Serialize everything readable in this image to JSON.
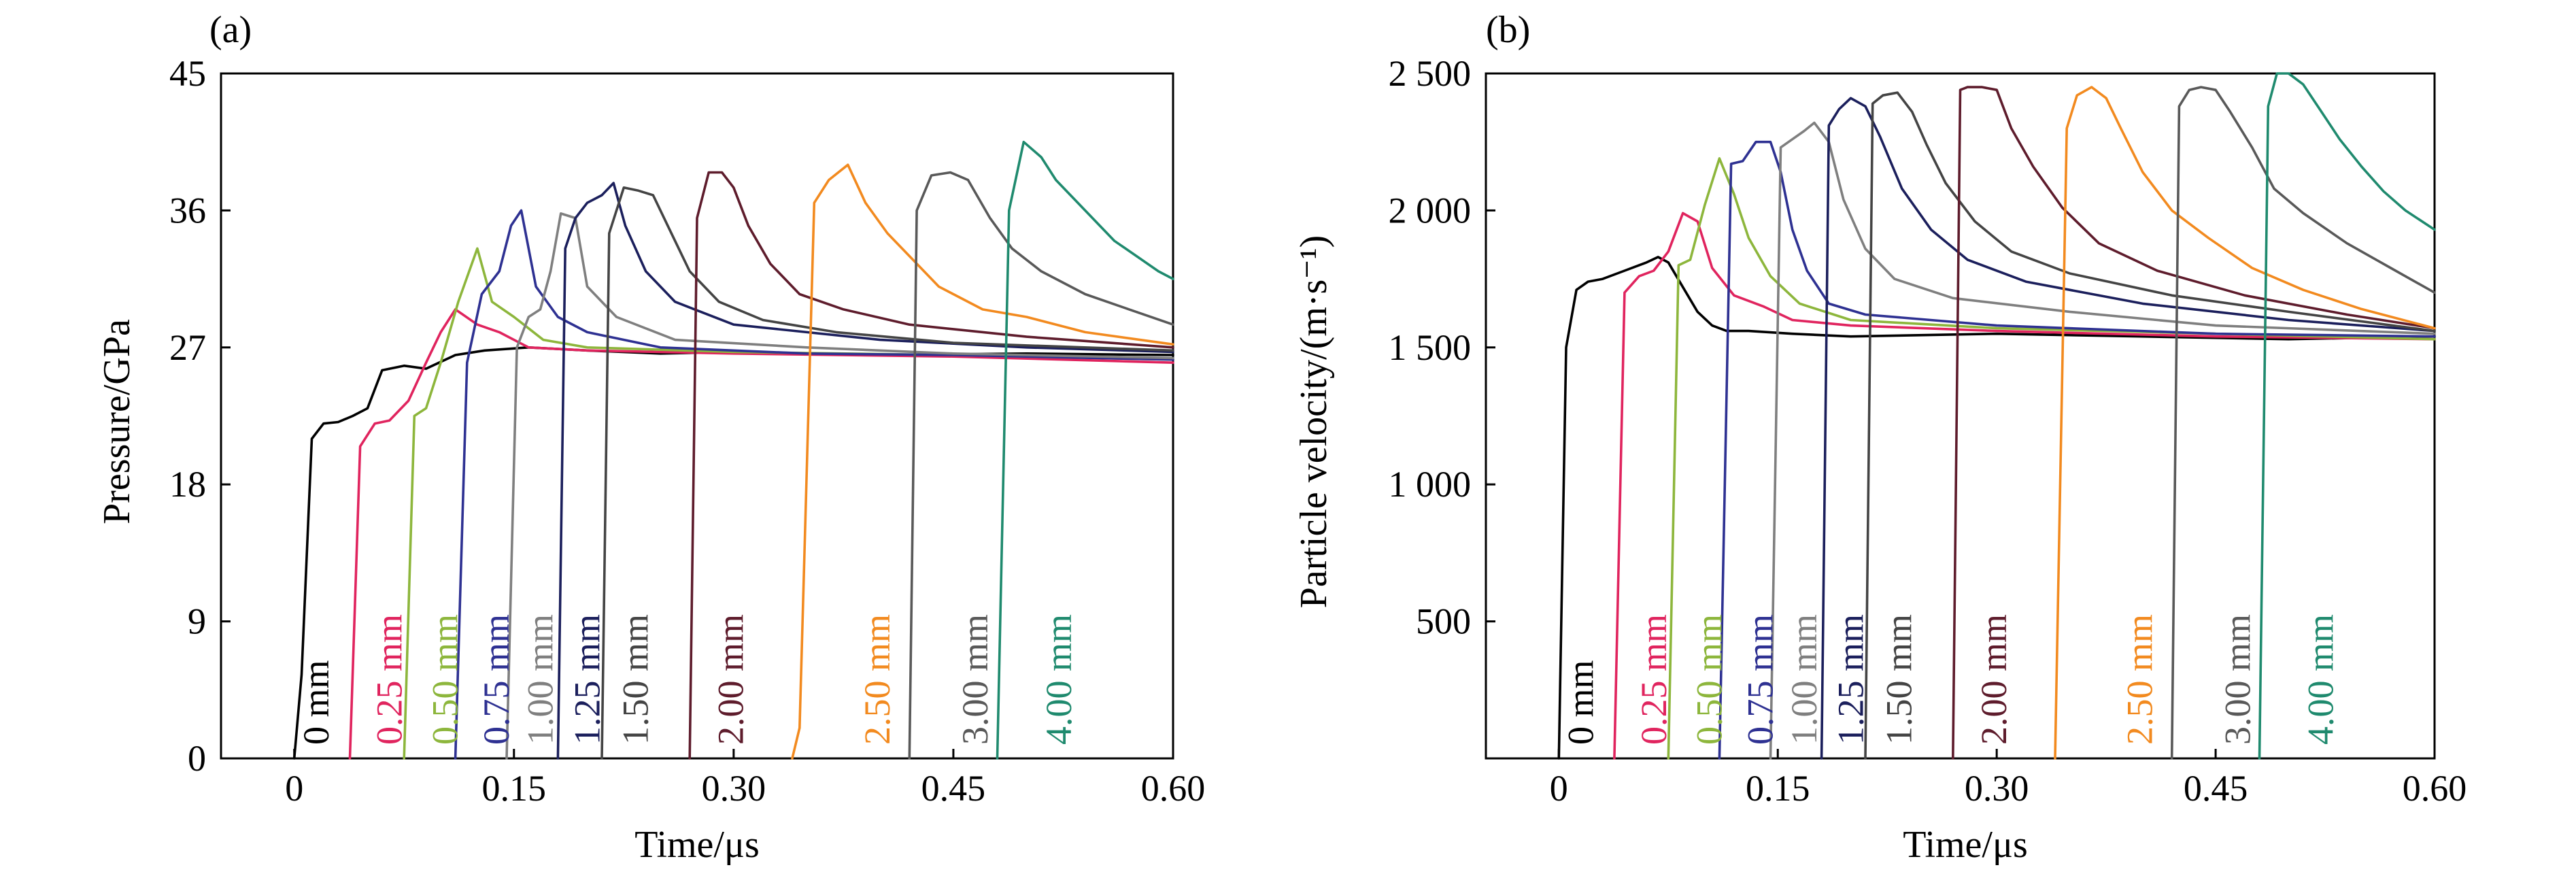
{
  "chart_data": [
    {
      "type": "line",
      "panel_label": "(a)",
      "xlabel": "Time/μs",
      "ylabel": "Pressure/GPa",
      "xlim": [
        -0.05,
        0.6
      ],
      "ylim": [
        0,
        45
      ],
      "x_ticks": [
        0,
        0.15,
        0.3,
        0.45,
        0.6
      ],
      "x_tick_labels": [
        "0",
        "0.15",
        "0.30",
        "0.45",
        "0.60"
      ],
      "y_ticks": [
        0,
        9,
        18,
        27,
        36,
        45
      ],
      "y_tick_labels": [
        "0",
        "9",
        "18",
        "27",
        "36",
        "45"
      ],
      "grid": false,
      "legend": "inline labels",
      "series": [
        {
          "name": "0 mm",
          "color": "#000000",
          "label_x": 0.015,
          "x": [
            0.0,
            0.005,
            0.012,
            0.02,
            0.03,
            0.04,
            0.05,
            0.06,
            0.075,
            0.09,
            0.11,
            0.13,
            0.16,
            0.2,
            0.25,
            0.3,
            0.4,
            0.5,
            0.6
          ],
          "y": [
            0,
            5.5,
            21.0,
            22.0,
            22.1,
            22.5,
            23.0,
            25.5,
            25.8,
            25.6,
            26.5,
            26.8,
            27.0,
            26.8,
            26.6,
            26.7,
            26.5,
            26.6,
            26.5
          ]
        },
        {
          "name": "0.25 mm",
          "color": "#e0245e",
          "label_x": 0.065,
          "x": [
            0.038,
            0.045,
            0.055,
            0.065,
            0.078,
            0.09,
            0.1,
            0.11,
            0.125,
            0.14,
            0.16,
            0.2,
            0.3,
            0.45,
            0.6
          ],
          "y": [
            0,
            20.5,
            22.0,
            22.2,
            23.5,
            26.0,
            28.0,
            29.5,
            28.5,
            28.0,
            27.0,
            26.8,
            26.6,
            26.4,
            26.0
          ]
        },
        {
          "name": "0.50 mm",
          "color": "#8db63c",
          "label_x": 0.103,
          "x": [
            0.075,
            0.082,
            0.09,
            0.1,
            0.112,
            0.125,
            0.135,
            0.15,
            0.17,
            0.2,
            0.3,
            0.45,
            0.6
          ],
          "y": [
            0,
            22.5,
            23.0,
            26.0,
            30.0,
            33.5,
            30.0,
            29.0,
            27.5,
            27.0,
            26.7,
            26.5,
            26.2
          ]
        },
        {
          "name": "0.75 mm",
          "color": "#2e3192",
          "label_x": 0.138,
          "x": [
            0.11,
            0.118,
            0.128,
            0.14,
            0.148,
            0.155,
            0.165,
            0.18,
            0.2,
            0.25,
            0.35,
            0.45,
            0.6
          ],
          "y": [
            0,
            26.0,
            30.5,
            32.0,
            35.0,
            36.0,
            31.0,
            29.0,
            28.0,
            27.0,
            26.6,
            26.5,
            26.2
          ]
        },
        {
          "name": "1.00 mm",
          "color": "#7f7f7f",
          "label_x": 0.168,
          "x": [
            0.145,
            0.152,
            0.16,
            0.168,
            0.175,
            0.182,
            0.192,
            0.2,
            0.22,
            0.26,
            0.35,
            0.45,
            0.6
          ],
          "y": [
            0,
            27.0,
            29.0,
            29.5,
            32.0,
            35.8,
            35.5,
            31.0,
            29.0,
            27.5,
            27.0,
            26.6,
            26.3
          ]
        },
        {
          "name": "1.25 mm",
          "color": "#1b1f5c",
          "label_x": 0.2,
          "x": [
            0.18,
            0.185,
            0.192,
            0.2,
            0.21,
            0.218,
            0.226,
            0.24,
            0.26,
            0.3,
            0.4,
            0.5,
            0.6
          ],
          "y": [
            0,
            33.5,
            35.5,
            36.5,
            37.0,
            37.8,
            35.0,
            32.0,
            30.0,
            28.5,
            27.5,
            27.0,
            26.7
          ]
        },
        {
          "name": "1.50 mm",
          "color": "#444444",
          "label_x": 0.233,
          "x": [
            0.21,
            0.215,
            0.225,
            0.235,
            0.245,
            0.255,
            0.27,
            0.29,
            0.32,
            0.37,
            0.45,
            0.6
          ],
          "y": [
            0,
            34.5,
            37.5,
            37.3,
            37.0,
            35.0,
            32.0,
            30.0,
            28.8,
            28.0,
            27.3,
            26.8
          ]
        },
        {
          "name": "2.00 mm",
          "color": "#5e1c2c",
          "label_x": 0.298,
          "x": [
            0.27,
            0.275,
            0.283,
            0.292,
            0.3,
            0.31,
            0.325,
            0.345,
            0.375,
            0.42,
            0.5,
            0.6
          ],
          "y": [
            0,
            35.5,
            38.5,
            38.5,
            37.5,
            35.0,
            32.5,
            30.5,
            29.5,
            28.5,
            27.7,
            27.0
          ]
        },
        {
          "name": "2.50 mm",
          "color": "#f28a1f",
          "label_x": 0.398,
          "x": [
            0.34,
            0.345,
            0.355,
            0.365,
            0.378,
            0.39,
            0.405,
            0.42,
            0.44,
            0.47,
            0.5,
            0.54,
            0.6
          ],
          "y": [
            0,
            2.0,
            36.5,
            38.0,
            39.0,
            36.5,
            34.5,
            33.0,
            31.0,
            29.5,
            29.0,
            28.0,
            27.2
          ]
        },
        {
          "name": "3.00 mm",
          "color": "#595959",
          "label_x": 0.465,
          "x": [
            0.42,
            0.425,
            0.435,
            0.448,
            0.46,
            0.475,
            0.49,
            0.51,
            0.54,
            0.57,
            0.6
          ],
          "y": [
            0,
            36.0,
            38.3,
            38.5,
            38.0,
            35.5,
            33.5,
            32.0,
            30.5,
            29.5,
            28.5
          ]
        },
        {
          "name": "4.00 mm",
          "color": "#1f8a6e",
          "label_x": 0.522,
          "x": [
            0.48,
            0.488,
            0.498,
            0.51,
            0.52,
            0.53,
            0.545,
            0.56,
            0.575,
            0.59,
            0.6
          ],
          "y": [
            0,
            36.0,
            40.5,
            39.5,
            38.0,
            37.0,
            35.5,
            34.0,
            33.0,
            32.0,
            31.5
          ]
        }
      ]
    },
    {
      "type": "line",
      "panel_label": "(b)",
      "xlabel": "Time/μs",
      "ylabel": "Particle velocity/(m·s⁻¹)",
      "xlim": [
        -0.05,
        0.6
      ],
      "ylim": [
        0,
        2500
      ],
      "x_ticks": [
        0,
        0.15,
        0.3,
        0.45,
        0.6
      ],
      "x_tick_labels": [
        "0",
        "0.15",
        "0.30",
        "0.45",
        "0.60"
      ],
      "y_ticks": [
        500,
        1000,
        1500,
        2000,
        2500
      ],
      "y_tick_labels": [
        "500",
        "1 000",
        "1 500",
        "2 000",
        "2 500"
      ],
      "grid": false,
      "legend": "inline labels",
      "series": [
        {
          "name": "0 mm",
          "color": "#000000",
          "label_x": 0.015,
          "x": [
            0.0,
            0.005,
            0.012,
            0.02,
            0.03,
            0.045,
            0.06,
            0.068,
            0.075,
            0.085,
            0.095,
            0.105,
            0.115,
            0.13,
            0.16,
            0.2,
            0.3,
            0.4,
            0.5,
            0.6
          ],
          "y": [
            0,
            1500,
            1710,
            1740,
            1750,
            1780,
            1810,
            1830,
            1810,
            1720,
            1630,
            1580,
            1560,
            1560,
            1550,
            1540,
            1550,
            1540,
            1530,
            1540
          ]
        },
        {
          "name": "0.25 mm",
          "color": "#e0245e",
          "label_x": 0.065,
          "x": [
            0.038,
            0.045,
            0.055,
            0.065,
            0.075,
            0.085,
            0.095,
            0.105,
            0.12,
            0.14,
            0.16,
            0.2,
            0.3,
            0.45,
            0.6
          ],
          "y": [
            0,
            1700,
            1760,
            1780,
            1850,
            1990,
            1960,
            1790,
            1690,
            1650,
            1600,
            1580,
            1560,
            1540,
            1530
          ]
        },
        {
          "name": "0.50 mm",
          "color": "#8db63c",
          "label_x": 0.103,
          "x": [
            0.075,
            0.082,
            0.09,
            0.1,
            0.11,
            0.12,
            0.13,
            0.145,
            0.165,
            0.2,
            0.3,
            0.45,
            0.6
          ],
          "y": [
            0,
            1800,
            1820,
            2020,
            2190,
            2060,
            1900,
            1760,
            1660,
            1600,
            1570,
            1550,
            1530
          ]
        },
        {
          "name": "0.75 mm",
          "color": "#2e3192",
          "label_x": 0.138,
          "x": [
            0.11,
            0.118,
            0.126,
            0.135,
            0.145,
            0.152,
            0.16,
            0.17,
            0.185,
            0.21,
            0.3,
            0.45,
            0.6
          ],
          "y": [
            0,
            2170,
            2180,
            2250,
            2250,
            2140,
            1930,
            1780,
            1660,
            1620,
            1580,
            1550,
            1540
          ]
        },
        {
          "name": "1.00 mm",
          "color": "#7f7f7f",
          "label_x": 0.168,
          "x": [
            0.145,
            0.152,
            0.16,
            0.168,
            0.175,
            0.185,
            0.195,
            0.21,
            0.23,
            0.27,
            0.35,
            0.45,
            0.6
          ],
          "y": [
            0,
            2230,
            2260,
            2290,
            2320,
            2250,
            2040,
            1860,
            1750,
            1680,
            1630,
            1580,
            1550
          ]
        },
        {
          "name": "1.25 mm",
          "color": "#1b1f5c",
          "label_x": 0.2,
          "x": [
            0.18,
            0.185,
            0.192,
            0.2,
            0.21,
            0.22,
            0.235,
            0.255,
            0.28,
            0.32,
            0.4,
            0.5,
            0.6
          ],
          "y": [
            0,
            2310,
            2370,
            2410,
            2380,
            2270,
            2080,
            1930,
            1820,
            1740,
            1660,
            1600,
            1560
          ]
        },
        {
          "name": "1.50 mm",
          "color": "#444444",
          "label_x": 0.233,
          "x": [
            0.21,
            0.215,
            0.222,
            0.232,
            0.242,
            0.252,
            0.265,
            0.285,
            0.31,
            0.35,
            0.42,
            0.5,
            0.6
          ],
          "y": [
            0,
            2390,
            2420,
            2430,
            2360,
            2240,
            2100,
            1960,
            1850,
            1770,
            1690,
            1630,
            1560
          ]
        },
        {
          "name": "2.00 mm",
          "color": "#5e1c2c",
          "label_x": 0.298,
          "x": [
            0.27,
            0.275,
            0.28,
            0.29,
            0.3,
            0.31,
            0.325,
            0.345,
            0.37,
            0.41,
            0.47,
            0.54,
            0.6
          ],
          "y": [
            0,
            2440,
            2450,
            2450,
            2440,
            2300,
            2160,
            2010,
            1880,
            1780,
            1690,
            1620,
            1570
          ]
        },
        {
          "name": "2.50 mm",
          "color": "#f28a1f",
          "label_x": 0.398,
          "x": [
            0.34,
            0.348,
            0.355,
            0.365,
            0.375,
            0.385,
            0.4,
            0.42,
            0.445,
            0.475,
            0.51,
            0.55,
            0.6
          ],
          "y": [
            0,
            2300,
            2420,
            2450,
            2410,
            2300,
            2140,
            2000,
            1900,
            1790,
            1710,
            1640,
            1570
          ]
        },
        {
          "name": "3.00 mm",
          "color": "#595959",
          "label_x": 0.465,
          "x": [
            0.42,
            0.425,
            0.432,
            0.44,
            0.45,
            0.46,
            0.475,
            0.49,
            0.51,
            0.54,
            0.57,
            0.6
          ],
          "y": [
            0,
            2380,
            2440,
            2450,
            2440,
            2360,
            2230,
            2080,
            1990,
            1880,
            1790,
            1700
          ]
        },
        {
          "name": "4.00 mm",
          "color": "#1f8a6e",
          "label_x": 0.522,
          "x": [
            0.48,
            0.486,
            0.492,
            0.5,
            0.51,
            0.52,
            0.535,
            0.55,
            0.565,
            0.58,
            0.6
          ],
          "y": [
            0,
            2380,
            2500,
            2500,
            2460,
            2380,
            2260,
            2160,
            2070,
            2000,
            1930
          ]
        }
      ]
    }
  ]
}
